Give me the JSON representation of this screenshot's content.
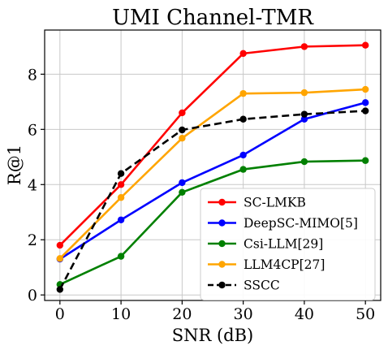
{
  "chart_data": {
    "type": "line",
    "title": "UMI Channel-TMR",
    "xlabel": "SNR (dB)",
    "ylabel": "R@1",
    "x": [
      0,
      10,
      20,
      30,
      40,
      50
    ],
    "xlim": [
      -2.5,
      52.5
    ],
    "ylim": [
      -0.2,
      9.6
    ],
    "xticks": [
      0,
      10,
      20,
      30,
      40,
      50
    ],
    "yticks": [
      0,
      2,
      4,
      6,
      8
    ],
    "grid": true,
    "legend_position": "bottom-right",
    "series": [
      {
        "name": "SC-LMKB",
        "color": "#ff0000",
        "dash": "solid",
        "values": [
          1.8,
          4.0,
          6.6,
          8.75,
          9.0,
          9.05
        ]
      },
      {
        "name": "DeepSC-MIMO[5]",
        "color": "#0000ff",
        "dash": "solid",
        "values": [
          1.3,
          2.72,
          4.07,
          5.07,
          6.37,
          6.97
        ]
      },
      {
        "name": "Csi-LLM[29]",
        "color": "#008000",
        "dash": "solid",
        "values": [
          0.38,
          1.4,
          3.72,
          4.55,
          4.83,
          4.87
        ]
      },
      {
        "name": "LLM4CP[27]",
        "color": "#ffa500",
        "dash": "solid",
        "values": [
          1.32,
          3.53,
          5.68,
          7.3,
          7.33,
          7.45
        ]
      },
      {
        "name": "SSCC",
        "color": "#000000",
        "dash": "dashed",
        "values": [
          0.2,
          4.4,
          5.98,
          6.37,
          6.55,
          6.67
        ]
      }
    ]
  }
}
